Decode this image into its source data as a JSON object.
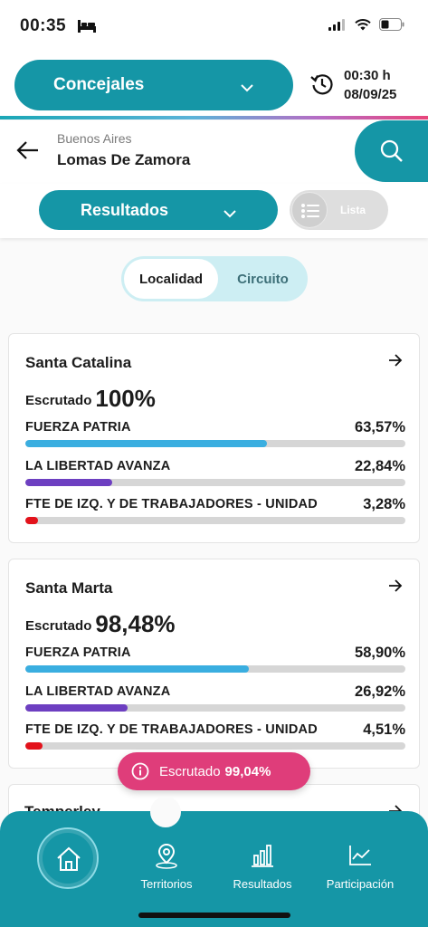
{
  "status_bar": {
    "time": "00:35",
    "bed_icon": "bed-icon",
    "signal_icon": "cellular-signal-icon",
    "wifi_icon": "wifi-icon",
    "battery_icon": "battery-icon"
  },
  "header": {
    "category": "Concejales",
    "update_time": "00:30 h",
    "update_date": "08/09/25",
    "colors": {
      "primary": "#1596a6",
      "accent": "#df3d7a"
    }
  },
  "location": {
    "province": "Buenos Aires",
    "city": "Lomas De Zamora"
  },
  "view": {
    "selector": "Resultados",
    "toggle_label": "Lista"
  },
  "segment": {
    "active": "Localidad",
    "inactive": "Circuito"
  },
  "cards": [
    {
      "title": "Santa Catalina",
      "scrutiny_label": "Escrutado",
      "scrutiny_value": "100%",
      "parties": [
        {
          "name": "FUERZA PATRIA",
          "pct": "63,57%",
          "value": 63.57,
          "color": "#3aaee0"
        },
        {
          "name": "LA LIBERTAD AVANZA",
          "pct": "22,84%",
          "value": 22.84,
          "color": "#6d3fc1"
        },
        {
          "name": "FTE DE IZQ. Y DE TRABAJADORES - UNIDAD",
          "pct": "3,28%",
          "value": 3.28,
          "color": "#e3121b"
        }
      ]
    },
    {
      "title": "Santa Marta",
      "scrutiny_label": "Escrutado",
      "scrutiny_value": "98,48%",
      "parties": [
        {
          "name": "FUERZA PATRIA",
          "pct": "58,90%",
          "value": 58.9,
          "color": "#3aaee0"
        },
        {
          "name": "LA LIBERTAD AVANZA",
          "pct": "26,92%",
          "value": 26.92,
          "color": "#6d3fc1"
        },
        {
          "name": "FTE DE IZQ. Y DE TRABAJADORES - UNIDAD",
          "pct": "4,51%",
          "value": 4.51,
          "color": "#e3121b"
        }
      ]
    },
    {
      "title": "Temperley"
    }
  ],
  "badge": {
    "label": "Escrutado",
    "value": "99,04%"
  },
  "nav": {
    "home_icon": "home-icon",
    "items": [
      {
        "label": "Territorios",
        "icon": "map-pin-icon"
      },
      {
        "label": "Resultados",
        "icon": "bar-chart-icon"
      },
      {
        "label": "Participación",
        "icon": "line-chart-icon"
      }
    ]
  }
}
